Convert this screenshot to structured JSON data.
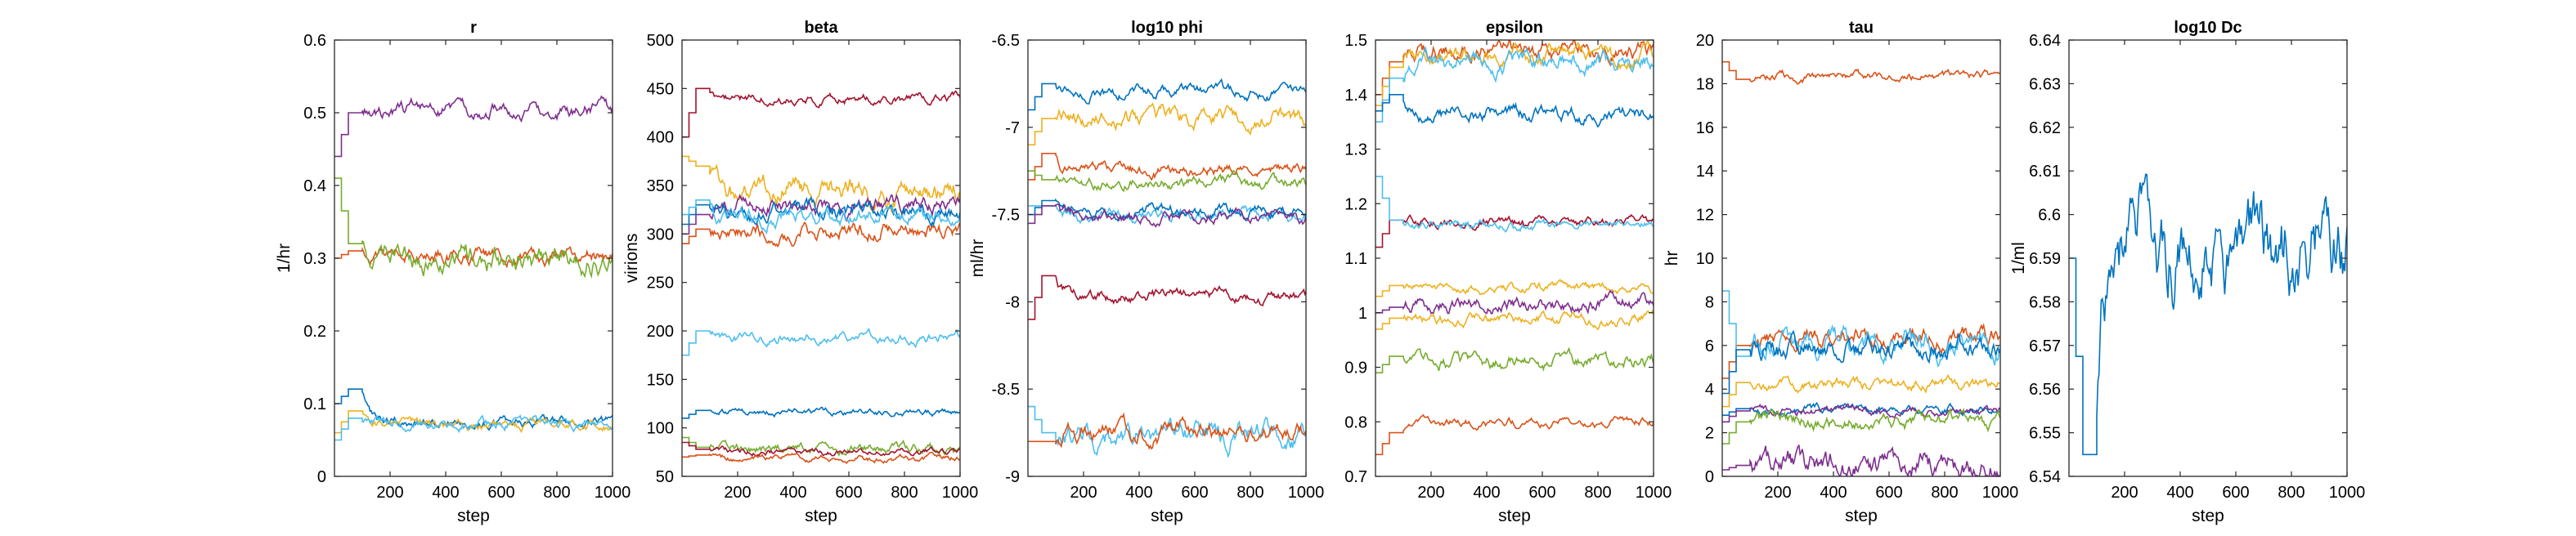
{
  "figure": {
    "colors": [
      "#0072BD",
      "#D95319",
      "#EDB120",
      "#7E2F8E",
      "#77AC30",
      "#4DBEEE",
      "#A2142F"
    ]
  },
  "chart_data": [
    {
      "type": "line",
      "title": "r",
      "xlabel": "step",
      "ylabel": "1/hr",
      "xlim": [
        0,
        1000
      ],
      "ylim": [
        0,
        0.6
      ],
      "xticks": [
        200,
        400,
        600,
        800,
        1000
      ],
      "yticks": [
        0,
        0.1,
        0.2,
        0.3,
        0.4,
        0.5,
        0.6
      ],
      "grid": false,
      "series": [
        {
          "color": "#7E2F8E",
          "init": 0.44,
          "burn": 0.5,
          "level": 0.505,
          "noise": 0.006
        },
        {
          "color": "#D95319",
          "init": 0.3,
          "burn": 0.31,
          "level": 0.305,
          "noise": 0.006
        },
        {
          "color": "#77AC30",
          "init": 0.41,
          "burn": 0.32,
          "level": 0.298,
          "noise": 0.01
        },
        {
          "color": "#0072BD",
          "init": 0.1,
          "burn": 0.12,
          "level": 0.074,
          "noise": 0.004
        },
        {
          "color": "#EDB120",
          "init": 0.06,
          "burn": 0.09,
          "level": 0.07,
          "noise": 0.004
        },
        {
          "color": "#4DBEEE",
          "init": 0.05,
          "burn": 0.08,
          "level": 0.072,
          "noise": 0.004
        }
      ]
    },
    {
      "type": "line",
      "title": "beta",
      "xlabel": "step",
      "ylabel": "virions",
      "xlim": [
        0,
        1000
      ],
      "ylim": [
        50,
        500
      ],
      "xticks": [
        200,
        400,
        600,
        800,
        1000
      ],
      "yticks": [
        50,
        100,
        150,
        200,
        250,
        300,
        350,
        400,
        450,
        500
      ],
      "grid": false,
      "series": [
        {
          "color": "#A2142F",
          "init": 400,
          "burn": 450,
          "level": 440,
          "noise": 3
        },
        {
          "color": "#EDB120",
          "init": 380,
          "burn": 370,
          "level": 345,
          "noise": 7
        },
        {
          "color": "#7E2F8E",
          "init": 300,
          "burn": 320,
          "level": 330,
          "noise": 5
        },
        {
          "color": "#0072BD",
          "init": 310,
          "burn": 330,
          "level": 322,
          "noise": 5
        },
        {
          "color": "#4DBEEE",
          "init": 320,
          "burn": 335,
          "level": 318,
          "noise": 5
        },
        {
          "color": "#D95319",
          "init": 290,
          "burn": 305,
          "level": 303,
          "noise": 5
        },
        {
          "color": "#4DBEEE",
          "init": 175,
          "burn": 200,
          "level": 193,
          "noise": 3
        },
        {
          "color": "#0072BD",
          "init": 110,
          "burn": 118,
          "level": 116,
          "noise": 2
        },
        {
          "color": "#77AC30",
          "init": 90,
          "burn": 80,
          "level": 78,
          "noise": 3
        },
        {
          "color": "#A2142F",
          "init": 85,
          "burn": 78,
          "level": 75,
          "noise": 2
        },
        {
          "color": "#D95319",
          "init": 70,
          "burn": 72,
          "level": 68,
          "noise": 2
        }
      ]
    },
    {
      "type": "line",
      "title": "log10 phi",
      "xlabel": "step",
      "ylabel": "ml/hr",
      "xlim": [
        0,
        1000
      ],
      "ylim": [
        -9,
        -6.5
      ],
      "xticks": [
        200,
        400,
        600,
        800,
        1000
      ],
      "yticks": [
        -9,
        -8.5,
        -8,
        -7.5,
        -7,
        -6.5
      ],
      "grid": false,
      "series": [
        {
          "color": "#0072BD",
          "init": -6.9,
          "burn": -6.75,
          "level": -6.8,
          "noise": 0.02
        },
        {
          "color": "#EDB120",
          "init": -7.1,
          "burn": -6.95,
          "level": -6.95,
          "noise": 0.03
        },
        {
          "color": "#D95319",
          "init": -7.3,
          "burn": -7.15,
          "level": -7.25,
          "noise": 0.02
        },
        {
          "color": "#77AC30",
          "init": -7.25,
          "burn": -7.3,
          "level": -7.32,
          "noise": 0.02
        },
        {
          "color": "#4DBEEE",
          "init": -7.45,
          "burn": -7.45,
          "level": -7.5,
          "noise": 0.02
        },
        {
          "color": "#0072BD",
          "init": -7.5,
          "burn": -7.42,
          "level": -7.48,
          "noise": 0.02
        },
        {
          "color": "#7E2F8E",
          "init": -7.55,
          "burn": -7.45,
          "level": -7.52,
          "noise": 0.02
        },
        {
          "color": "#A2142F",
          "init": -8.1,
          "burn": -7.85,
          "level": -7.97,
          "noise": 0.02
        },
        {
          "color": "#4DBEEE",
          "init": -8.6,
          "burn": -8.75,
          "level": -8.78,
          "noise": 0.04
        },
        {
          "color": "#D95319",
          "init": -8.8,
          "burn": -8.8,
          "level": -8.75,
          "noise": 0.03
        }
      ]
    },
    {
      "type": "line",
      "title": "epsilon",
      "xlabel": "step",
      "ylabel": "",
      "xlim": [
        0,
        1000
      ],
      "ylim": [
        0.7,
        1.5
      ],
      "xticks": [
        200,
        400,
        600,
        800,
        1000
      ],
      "yticks": [
        0.7,
        0.8,
        0.9,
        1,
        1.1,
        1.2,
        1.3,
        1.4,
        1.5
      ],
      "grid": false,
      "series": [
        {
          "color": "#D95319",
          "init": 1.4,
          "burn": 1.46,
          "level": 1.48,
          "noise": 0.01
        },
        {
          "color": "#EDB120",
          "init": 1.38,
          "burn": 1.45,
          "level": 1.47,
          "noise": 0.01
        },
        {
          "color": "#4DBEEE",
          "init": 1.35,
          "burn": 1.43,
          "level": 1.46,
          "noise": 0.01
        },
        {
          "color": "#0072BD",
          "init": 1.37,
          "burn": 1.4,
          "level": 1.365,
          "noise": 0.008
        },
        {
          "color": "#A2142F",
          "init": 1.12,
          "burn": 1.17,
          "level": 1.165,
          "noise": 0.005
        },
        {
          "color": "#4DBEEE",
          "init": 1.25,
          "burn": 1.17,
          "level": 1.16,
          "noise": 0.005
        },
        {
          "color": "#EDB120",
          "init": 1.03,
          "burn": 1.05,
          "level": 1.045,
          "noise": 0.005
        },
        {
          "color": "#7E2F8E",
          "init": 1.0,
          "burn": 1.01,
          "level": 1.015,
          "noise": 0.008
        },
        {
          "color": "#EDB120",
          "init": 0.97,
          "burn": 0.99,
          "level": 0.99,
          "noise": 0.006
        },
        {
          "color": "#77AC30",
          "init": 0.89,
          "burn": 0.92,
          "level": 0.91,
          "noise": 0.008
        },
        {
          "color": "#D95319",
          "init": 0.74,
          "burn": 0.78,
          "level": 0.8,
          "noise": 0.005
        }
      ]
    },
    {
      "type": "line",
      "title": "tau",
      "xlabel": "step",
      "ylabel": "hr",
      "xlim": [
        0,
        1000
      ],
      "ylim": [
        0,
        20
      ],
      "xticks": [
        200,
        400,
        600,
        800,
        1000
      ],
      "yticks": [
        0,
        2,
        4,
        6,
        8,
        10,
        12,
        14,
        16,
        18,
        20
      ],
      "grid": false,
      "series": [
        {
          "color": "#D95319",
          "init": 19,
          "burn": 18.2,
          "level": 18.3,
          "noise": 0.12
        },
        {
          "color": "#D95319",
          "init": 4.5,
          "burn": 6,
          "level": 6.4,
          "noise": 0.25
        },
        {
          "color": "#4DBEEE",
          "init": 8.5,
          "burn": 5.5,
          "level": 6.1,
          "noise": 0.35
        },
        {
          "color": "#0072BD",
          "init": 3.8,
          "burn": 5.8,
          "level": 5.8,
          "noise": 0.3
        },
        {
          "color": "#EDB120",
          "init": 3.2,
          "burn": 4.3,
          "level": 4.2,
          "noise": 0.15
        },
        {
          "color": "#0072BD",
          "init": 2.8,
          "burn": 3.1,
          "level": 3.1,
          "noise": 0.12
        },
        {
          "color": "#7E2F8E",
          "init": 2.5,
          "burn": 3,
          "level": 3,
          "noise": 0.12
        },
        {
          "color": "#77AC30",
          "init": 1.5,
          "burn": 2.5,
          "level": 2.5,
          "noise": 0.2
        },
        {
          "color": "#7E2F8E",
          "init": 0.3,
          "burn": 0.5,
          "level": 0.45,
          "noise": 0.35
        }
      ]
    },
    {
      "type": "line",
      "title": "log10 Dc",
      "xlabel": "step",
      "ylabel": "1/ml",
      "xlim": [
        0,
        1000
      ],
      "ylim": [
        6.54,
        6.64
      ],
      "xticks": [
        200,
        400,
        600,
        800,
        1000
      ],
      "yticks": [
        6.54,
        6.55,
        6.56,
        6.57,
        6.58,
        6.59,
        6.6,
        6.61,
        6.62,
        6.63,
        6.64
      ],
      "grid": false,
      "series": [
        {
          "color": "#0072BD",
          "init": 6.59,
          "burn": 6.545,
          "level": 6.592,
          "noise": 0.006
        }
      ]
    }
  ]
}
